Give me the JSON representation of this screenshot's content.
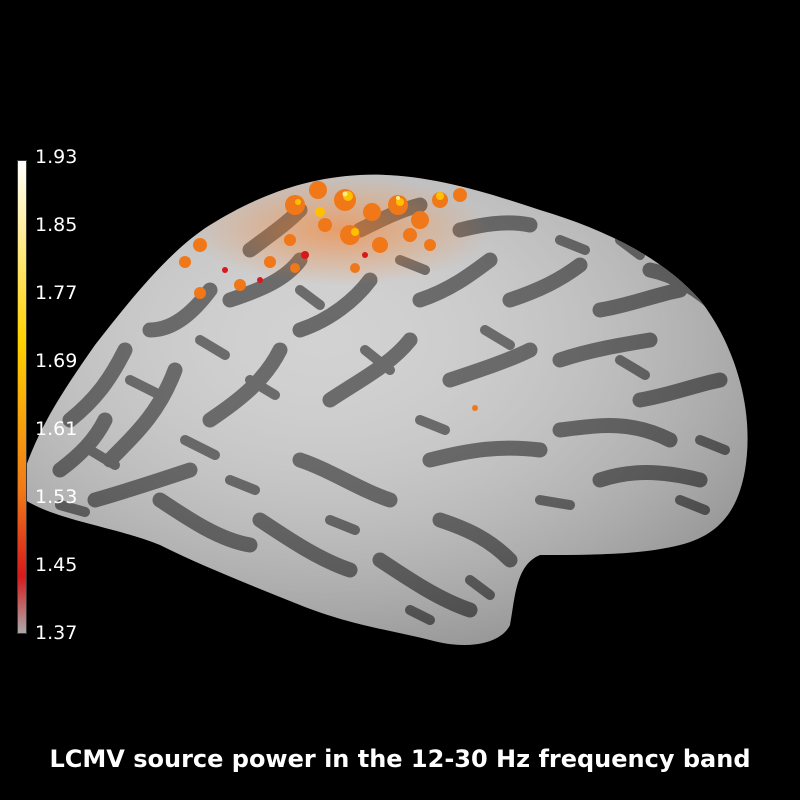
{
  "title": "LCMV source power in the 12-30 Hz frequency band",
  "colorbar": {
    "tick_labels": [
      "1.93",
      "1.85",
      "1.77",
      "1.69",
      "1.61",
      "1.53",
      "1.45",
      "1.37"
    ],
    "min": 1.37,
    "max": 1.93,
    "colors": {
      "low": "#aaaaaa",
      "red": "#d7191c",
      "orange": "#f07818",
      "yellow": "#ffd200",
      "high": "#ffffff"
    }
  },
  "colors": {
    "background": "#000000",
    "gyrus": "#cfcfcf",
    "sulcus": "#606060",
    "text": "#ffffff"
  }
}
